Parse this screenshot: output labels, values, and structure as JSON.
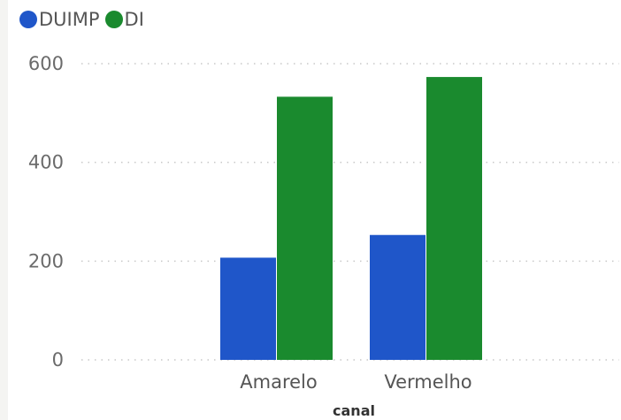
{
  "legend": {
    "items": [
      {
        "label": "DUIMP",
        "color": "#1f56c9"
      },
      {
        "label": "DI",
        "color": "#1a8a2e"
      }
    ]
  },
  "chart_data": {
    "type": "bar",
    "categories": [
      "Amarelo",
      "Vermelho"
    ],
    "series": [
      {
        "name": "DUIMP",
        "values": [
          207,
          253
        ],
        "color": "#1f56c9"
      },
      {
        "name": "DI",
        "values": [
          533,
          573
        ],
        "color": "#1a8a2e"
      }
    ],
    "xlabel": "canal",
    "ylabel": "",
    "ylim": [
      0,
      600
    ],
    "yticks": [
      "0",
      "200",
      "400",
      "600"
    ],
    "grid": true,
    "legend_position": "top-left"
  }
}
